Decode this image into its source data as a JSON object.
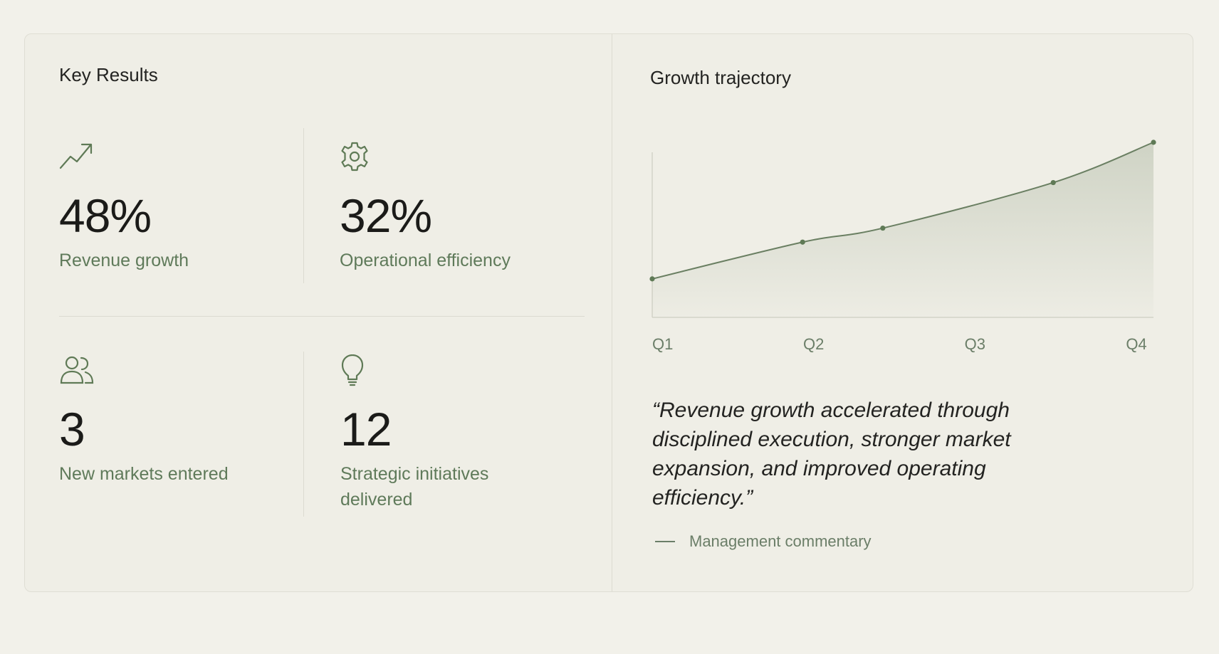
{
  "key_results": {
    "title": "Key Results",
    "items": [
      {
        "icon": "trending-up-icon",
        "value": "48%",
        "label": "Revenue growth"
      },
      {
        "icon": "gear-icon",
        "value": "32%",
        "label": "Operational efficiency"
      },
      {
        "icon": "users-icon",
        "value": "3",
        "label": "New markets entered"
      },
      {
        "icon": "lightbulb-icon",
        "value": "12",
        "label": "Strategic initiatives delivered"
      }
    ]
  },
  "growth": {
    "title": "Growth trajectory",
    "quote": "“Revenue growth accelerated through disciplined execution, stronger market expansion, and improved operating efficiency.”",
    "attribution": "Management commentary"
  },
  "chart_data": {
    "type": "area",
    "title": "Growth trajectory",
    "categories": [
      "Q1",
      "Q2",
      "Q3",
      "Q4"
    ],
    "x": [
      0,
      0.3,
      0.46,
      0.8,
      1.0
    ],
    "values": [
      22,
      43,
      51,
      77,
      100
    ],
    "ylim": [
      0,
      100
    ],
    "grid": false,
    "accent": "#5f7a56"
  },
  "colors": {
    "accent": "#5f7a56",
    "label": "#5f7a5a",
    "background": "#f2f1ea"
  }
}
